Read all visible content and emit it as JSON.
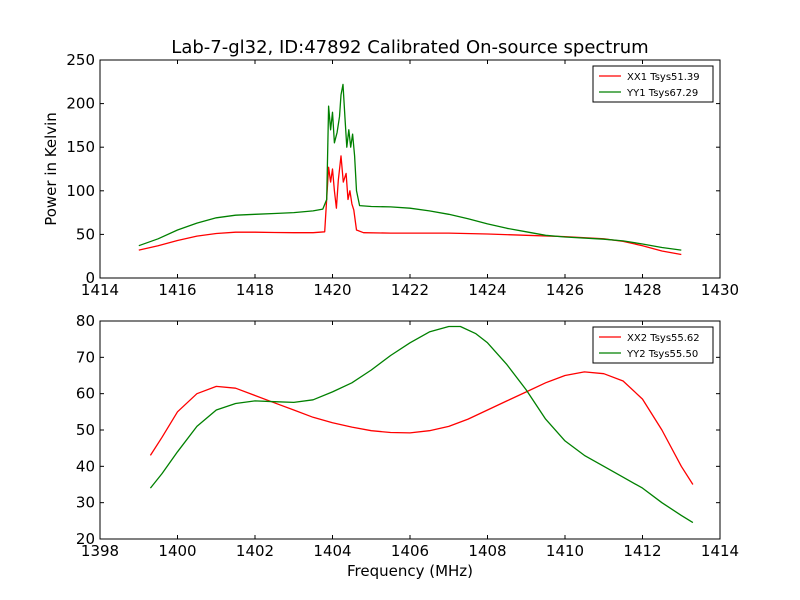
{
  "figure": {
    "title": "Lab-7-gl32, ID:47892 Calibrated On-source spectrum",
    "ylabel": "Power in Kelvin",
    "xlabel": "Frequency (MHz)"
  },
  "chart_data": [
    {
      "type": "line",
      "xlim": [
        1414,
        1430
      ],
      "ylim": [
        0,
        250
      ],
      "xticks": [
        1414,
        1416,
        1418,
        1420,
        1422,
        1424,
        1426,
        1428,
        1430
      ],
      "yticks": [
        0,
        50,
        100,
        150,
        200,
        250
      ],
      "legend_position": "top-right",
      "grid": false,
      "series": [
        {
          "name": "XX1 Tsys51.39",
          "color": "#ff0000",
          "points": [
            [
              1415.0,
              32
            ],
            [
              1415.5,
              37
            ],
            [
              1416.0,
              43
            ],
            [
              1416.5,
              48
            ],
            [
              1417.0,
              51
            ],
            [
              1417.5,
              52.5
            ],
            [
              1418.0,
              52.5
            ],
            [
              1418.5,
              52.2
            ],
            [
              1419.0,
              52
            ],
            [
              1419.5,
              52
            ],
            [
              1419.8,
              53
            ],
            [
              1419.9,
              127
            ],
            [
              1419.95,
              110
            ],
            [
              1420.0,
              125
            ],
            [
              1420.05,
              100
            ],
            [
              1420.1,
              80
            ],
            [
              1420.15,
              112
            ],
            [
              1420.22,
              140
            ],
            [
              1420.28,
              110
            ],
            [
              1420.35,
              120
            ],
            [
              1420.4,
              90
            ],
            [
              1420.45,
              100
            ],
            [
              1420.5,
              85
            ],
            [
              1420.55,
              78
            ],
            [
              1420.62,
              55
            ],
            [
              1420.8,
              52
            ],
            [
              1421.5,
              51.5
            ],
            [
              1422.0,
              51.5
            ],
            [
              1423.0,
              51.5
            ],
            [
              1424.0,
              50.5
            ],
            [
              1425.0,
              49
            ],
            [
              1426.0,
              47.5
            ],
            [
              1427.0,
              45
            ],
            [
              1427.5,
              42
            ],
            [
              1428.0,
              37
            ],
            [
              1428.5,
              31
            ],
            [
              1429.0,
              27
            ]
          ]
        },
        {
          "name": "YY1 Tsys67.29",
          "color": "#008000",
          "points": [
            [
              1415.0,
              37
            ],
            [
              1415.5,
              45
            ],
            [
              1416.0,
              55
            ],
            [
              1416.5,
              63
            ],
            [
              1417.0,
              69
            ],
            [
              1417.5,
              72
            ],
            [
              1418.0,
              73
            ],
            [
              1418.5,
              74
            ],
            [
              1419.0,
              75
            ],
            [
              1419.5,
              77
            ],
            [
              1419.75,
              79
            ],
            [
              1419.85,
              90
            ],
            [
              1419.9,
              197
            ],
            [
              1419.95,
              170
            ],
            [
              1420.0,
              190
            ],
            [
              1420.05,
              155
            ],
            [
              1420.12,
              167
            ],
            [
              1420.18,
              185
            ],
            [
              1420.22,
              210
            ],
            [
              1420.27,
              222
            ],
            [
              1420.32,
              185
            ],
            [
              1420.37,
              150
            ],
            [
              1420.42,
              170
            ],
            [
              1420.47,
              150
            ],
            [
              1420.52,
              165
            ],
            [
              1420.57,
              140
            ],
            [
              1420.62,
              100
            ],
            [
              1420.7,
              83
            ],
            [
              1421.0,
              82
            ],
            [
              1421.5,
              81.5
            ],
            [
              1422.0,
              80
            ],
            [
              1422.5,
              77
            ],
            [
              1423.0,
              73
            ],
            [
              1423.5,
              68
            ],
            [
              1424.0,
              62
            ],
            [
              1424.5,
              57
            ],
            [
              1425.0,
              53
            ],
            [
              1425.5,
              49
            ],
            [
              1426.0,
              47
            ],
            [
              1427.0,
              44.5
            ],
            [
              1427.5,
              42.5
            ],
            [
              1428.0,
              39
            ],
            [
              1428.5,
              35
            ],
            [
              1429.0,
              32
            ]
          ]
        }
      ]
    },
    {
      "type": "line",
      "xlim": [
        1398,
        1414
      ],
      "ylim": [
        20,
        80
      ],
      "xticks": [
        1398,
        1400,
        1402,
        1404,
        1406,
        1408,
        1410,
        1412,
        1414
      ],
      "yticks": [
        20,
        30,
        40,
        50,
        60,
        70,
        80
      ],
      "legend_position": "top-right",
      "grid": false,
      "series": [
        {
          "name": "XX2 Tsys55.62",
          "color": "#ff0000",
          "points": [
            [
              1399.3,
              43
            ],
            [
              1399.6,
              48
            ],
            [
              1400.0,
              55
            ],
            [
              1400.5,
              60
            ],
            [
              1401.0,
              62
            ],
            [
              1401.5,
              61.5
            ],
            [
              1402.0,
              59.5
            ],
            [
              1402.5,
              57.5
            ],
            [
              1403.0,
              55.5
            ],
            [
              1403.5,
              53.5
            ],
            [
              1404.0,
              52
            ],
            [
              1404.5,
              50.8
            ],
            [
              1405.0,
              49.8
            ],
            [
              1405.5,
              49.3
            ],
            [
              1406.0,
              49.2
            ],
            [
              1406.5,
              49.8
            ],
            [
              1407.0,
              51
            ],
            [
              1407.5,
              53
            ],
            [
              1408.0,
              55.5
            ],
            [
              1408.5,
              58
            ],
            [
              1409.0,
              60.5
            ],
            [
              1409.5,
              63
            ],
            [
              1410.0,
              65
            ],
            [
              1410.5,
              66
            ],
            [
              1411.0,
              65.5
            ],
            [
              1411.5,
              63.5
            ],
            [
              1412.0,
              58.5
            ],
            [
              1412.5,
              50
            ],
            [
              1413.0,
              40
            ],
            [
              1413.3,
              35
            ]
          ]
        },
        {
          "name": "YY2 Tsys55.50",
          "color": "#008000",
          "points": [
            [
              1399.3,
              34
            ],
            [
              1399.6,
              38
            ],
            [
              1400.0,
              44
            ],
            [
              1400.5,
              51
            ],
            [
              1401.0,
              55.5
            ],
            [
              1401.5,
              57.3
            ],
            [
              1402.0,
              58
            ],
            [
              1402.5,
              57.8
            ],
            [
              1403.0,
              57.6
            ],
            [
              1403.5,
              58.3
            ],
            [
              1404.0,
              60.5
            ],
            [
              1404.5,
              63
            ],
            [
              1405.0,
              66.5
            ],
            [
              1405.5,
              70.5
            ],
            [
              1406.0,
              74
            ],
            [
              1406.5,
              77
            ],
            [
              1407.0,
              78.5
            ],
            [
              1407.3,
              78.5
            ],
            [
              1407.7,
              76.5
            ],
            [
              1408.0,
              74
            ],
            [
              1408.5,
              68
            ],
            [
              1409.0,
              61
            ],
            [
              1409.5,
              53
            ],
            [
              1410.0,
              47
            ],
            [
              1410.5,
              43
            ],
            [
              1411.0,
              40
            ],
            [
              1411.5,
              37
            ],
            [
              1412.0,
              34
            ],
            [
              1412.5,
              30
            ],
            [
              1413.0,
              26.5
            ],
            [
              1413.3,
              24.5
            ]
          ]
        }
      ]
    }
  ]
}
